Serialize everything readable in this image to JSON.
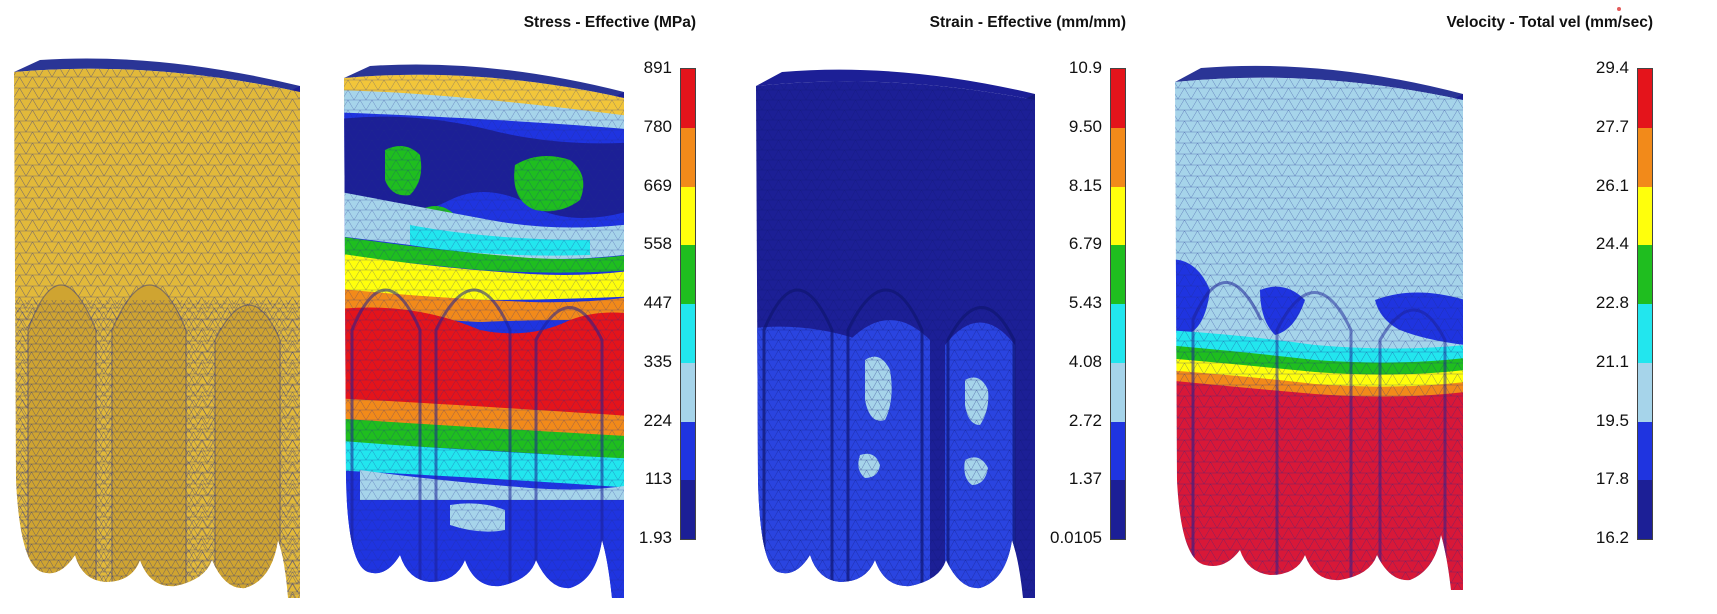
{
  "colors": {
    "legend_scale": [
      "#e4141b",
      "#f28a1a",
      "#ffff0c",
      "#1fbe1f",
      "#22e6ee",
      "#a6d4ea",
      "#1f34e0",
      "#1c1f96"
    ],
    "mesh_line": "#1e2a8c",
    "yellow_model": "#e2b93a",
    "body_background": "#ffffff"
  },
  "legends": [
    {
      "title": "Stress - Effective (MPa)",
      "ticks": [
        "891",
        "780",
        "669",
        "558",
        "447",
        "335",
        "224",
        "113",
        "1.93"
      ]
    },
    {
      "title": "Strain - Effective (mm/mm)",
      "ticks": [
        "10.9",
        "9.50",
        "8.15",
        "6.79",
        "5.43",
        "4.08",
        "2.72",
        "1.37",
        "0.0105"
      ]
    },
    {
      "title": "Velocity - Total vel (mm/sec)",
      "ticks": [
        "29.4",
        "27.7",
        "26.1",
        "24.4",
        "22.8",
        "21.1",
        "19.5",
        "17.8",
        "16.2"
      ]
    }
  ],
  "models": [
    {
      "name": "mesh-model",
      "fill": "yellow"
    },
    {
      "name": "stress-model",
      "fill": "stress-contours"
    },
    {
      "name": "strain-model",
      "fill": "strain-contours"
    },
    {
      "name": "velocity-model",
      "fill": "velocity-contours"
    }
  ]
}
